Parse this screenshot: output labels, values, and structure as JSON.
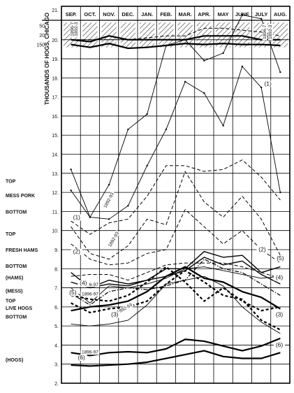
{
  "chart_data": {
    "type": "line",
    "title": "",
    "xlabel": "",
    "ylabel": "",
    "categories": [
      "SEP.",
      "OCT.",
      "NOV.",
      "DEC.",
      "JAN.",
      "FEB.",
      "MAR.",
      "APR.",
      "MAY",
      "JUNE",
      "JULY",
      "AUG."
    ],
    "ylim": [
      2,
      21
    ],
    "y_ticks": [
      "2.",
      "3.",
      "4.",
      "5.",
      "6.",
      "7.",
      "8.",
      "9.",
      "10.",
      "11.",
      "12.",
      "13.",
      "14.",
      "15.",
      "16.",
      "17.",
      "18.",
      "19.",
      "20.",
      "21."
    ],
    "hog_ticks": [
      {
        "label": "50",
        "y": 20.75
      },
      {
        "label": "20",
        "y": 20.25
      },
      {
        "label": "150",
        "y": 19.75
      }
    ],
    "left_axis_label": "THOUSANDS OF HOGS, CHICAGO",
    "row_labels": [
      {
        "label": "TOP",
        "y": 12.6
      },
      {
        "label": "MESS PORK",
        "y": 11.85
      },
      {
        "label": "BOTTOM",
        "y": 11.0
      },
      {
        "label": "TOP",
        "y": 9.85
      },
      {
        "label": "FRESH HAMS",
        "y": 9.0
      },
      {
        "label": "BOTTOM",
        "y": 8.15
      },
      {
        "label": "(HAMS)",
        "y": 7.55
      },
      {
        "label": "(MESS)",
        "y": 6.85
      },
      {
        "label": "TOP",
        "y": 6.35
      },
      {
        "label": "LIVE HOGS",
        "y": 5.95
      },
      {
        "label": "BOTTOM",
        "y": 5.5
      },
      {
        "label": "(HOGS)",
        "y": 3.25
      }
    ],
    "series": [
      {
        "style": "solid-thin",
        "values": [
          13.2,
          10.7,
          12.4,
          15.3,
          16.1,
          19.7,
          20.0,
          18.9,
          19.3,
          21.3,
          21.1,
          18.3
        ]
      },
      {
        "style": "solid-thin",
        "values": [
          12.1,
          10.7,
          10.6,
          11.3,
          13.4,
          15.3,
          17.8,
          17.2,
          15.5,
          18.6,
          17.5,
          12.0
        ]
      },
      {
        "style": "dashed",
        "values": [
          10.5,
          9.8,
          10.4,
          10.6,
          11.8,
          13.4,
          13.4,
          13.1,
          13.2,
          13.7,
          12.8,
          11.6
        ]
      },
      {
        "style": "dashed",
        "values": [
          10.2,
          8.8,
          8.5,
          9.2,
          10.6,
          10.3,
          13.1,
          11.5,
          10.7,
          11.8,
          10.6,
          8.7
        ]
      },
      {
        "style": "dashed",
        "values": [
          9.3,
          8.5,
          8.2,
          8.3,
          8.8,
          9.0,
          11.1,
          10.2,
          9.3,
          10.0,
          9.0,
          8.3
        ]
      },
      {
        "style": "dashed",
        "values": [
          7.6,
          7.7,
          7.7,
          7.4,
          7.8,
          8.2,
          8.3,
          8.3,
          8.3,
          8.1,
          7.8,
          7.5
        ]
      },
      {
        "style": "solid-medium",
        "values": [
          7.8,
          7.0,
          7.2,
          7.1,
          7.4,
          8.0,
          8.0,
          8.9,
          8.6,
          8.7,
          7.8,
          8.1
        ]
      },
      {
        "style": "solid-medium",
        "values": [
          7.3,
          7.0,
          7.4,
          7.2,
          7.4,
          7.6,
          7.9,
          8.6,
          8.2,
          8.4,
          7.7,
          7.2
        ]
      },
      {
        "style": "solid-thin",
        "values": [
          7.0,
          6.2,
          7.1,
          7.0,
          7.2,
          7.5,
          8.0,
          8.1,
          7.9,
          7.7,
          7.5,
          7.6
        ]
      },
      {
        "style": "dash-dot",
        "values": [
          6.7,
          6.1,
          6.8,
          7.0,
          6.9,
          7.1,
          7.4,
          8.5,
          8.0,
          7.8,
          7.2,
          6.6
        ]
      },
      {
        "style": "dashed-heavy",
        "values": [
          6.2,
          5.7,
          5.9,
          6.0,
          6.3,
          7.2,
          7.9,
          7.3,
          6.6,
          6.4,
          5.3,
          4.8
        ]
      },
      {
        "style": "dashed-heavy",
        "values": [
          6.6,
          6.4,
          6.3,
          6.6,
          7.3,
          8.1,
          7.3,
          6.3,
          7.0,
          6.3,
          5.8,
          6.0
        ]
      },
      {
        "style": "solid-heavy",
        "values": [
          5.8,
          6.0,
          6.1,
          6.3,
          6.8,
          7.6,
          8.1,
          7.5,
          7.3,
          6.8,
          6.5,
          5.9
        ]
      },
      {
        "style": "solid-thin",
        "values": [
          5.1,
          5.0,
          5.1,
          5.3,
          6.1,
          7.2,
          7.4,
          7.6,
          7.1,
          6.0,
          5.2,
          4.6
        ]
      },
      {
        "style": "solid-heavy",
        "values": [
          3.6,
          3.45,
          3.6,
          3.65,
          3.6,
          3.8,
          4.3,
          4.2,
          3.95,
          3.7,
          3.95,
          4.35
        ]
      },
      {
        "style": "solid-heavy",
        "values": [
          2.95,
          2.9,
          2.95,
          3.0,
          3.1,
          3.3,
          3.5,
          3.7,
          3.4,
          3.3,
          3.3,
          3.6
        ]
      },
      {
        "style": "solid-heavy",
        "values": [
          20.0,
          19.9,
          20.2,
          20.0,
          20.0,
          20.0,
          20.0,
          20.2,
          20.2,
          20.2,
          20.0,
          20.0
        ]
      },
      {
        "style": "dashed",
        "values": [
          20.0,
          20.0,
          20.0,
          20.0,
          20.1,
          20.2,
          20.2,
          20.6,
          20.6,
          20.5,
          20.4,
          20.2
        ]
      },
      {
        "style": "solid-heavy",
        "values": [
          19.75,
          19.6,
          19.8,
          19.55,
          19.6,
          19.7,
          19.8,
          19.75,
          19.8,
          19.75,
          19.75,
          19.7
        ]
      }
    ],
    "annotations": [
      {
        "text": "1896-7",
        "x": 1.15,
        "y": 20.55,
        "rotate": -90
      },
      {
        "text": "1892-3",
        "x": 1.35,
        "y": 20.55,
        "rotate": -90
      },
      {
        "text": "1896-7",
        "x": 11.25,
        "y": 20.4,
        "rotate": -90
      },
      {
        "text": "1892-3",
        "x": 11.55,
        "y": 20.4,
        "rotate": -90
      },
      {
        "text": "1892-93",
        "x": 3.05,
        "y": 11.55,
        "rotate": -62
      },
      {
        "text": "1892-93",
        "x": 3.3,
        "y": 9.5,
        "rotate": -60
      },
      {
        "text": "1896-97",
        "x": 2.0,
        "y": 7.1,
        "rotate": 0
      },
      {
        "text": "1896-97",
        "x": 2.0,
        "y": 6.6,
        "rotate": 0
      },
      {
        "text": "1892-93",
        "x": 3.85,
        "y": 5.85,
        "rotate": -30
      },
      {
        "text": "1896-97",
        "x": 2.0,
        "y": 3.55,
        "rotate": 0
      },
      {
        "text": "(1)",
        "x": 11.35,
        "y": 17.6,
        "rotate": 0
      },
      {
        "text": "(1)",
        "x": 1.3,
        "y": 10.6,
        "rotate": 0
      },
      {
        "text": "(2)",
        "x": 1.3,
        "y": 8.8,
        "rotate": 0
      },
      {
        "text": "(2)",
        "x": 11.05,
        "y": 8.9,
        "rotate": 0
      },
      {
        "text": "(4)",
        "x": 1.65,
        "y": 7.15,
        "rotate": 0
      },
      {
        "text": "(4)",
        "x": 11.95,
        "y": 7.45,
        "rotate": 0
      },
      {
        "text": "(5)",
        "x": 1.1,
        "y": 6.65,
        "rotate": 0
      },
      {
        "text": "(5)",
        "x": 12.0,
        "y": 8.45,
        "rotate": 0
      },
      {
        "text": "(3)",
        "x": 3.3,
        "y": 5.5,
        "rotate": 0
      },
      {
        "text": "(3)",
        "x": 11.95,
        "y": 5.5,
        "rotate": 0
      },
      {
        "text": "(6)",
        "x": 1.55,
        "y": 3.25,
        "rotate": 0
      },
      {
        "text": "(6)",
        "x": 11.95,
        "y": 3.9,
        "rotate": 0
      }
    ]
  }
}
